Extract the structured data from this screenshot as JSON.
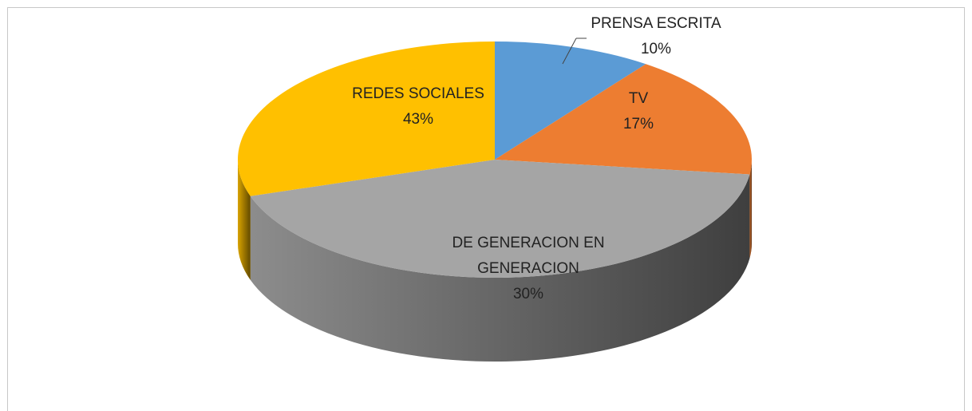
{
  "chart_data": {
    "type": "pie",
    "categories": [
      "PRENSA ESCRITA",
      "TV",
      "REDES SOCIALES",
      "DE GENERACION EN GENERACION"
    ],
    "values": [
      10,
      17,
      43,
      30
    ],
    "value_labels": [
      "10%",
      "17%",
      "43%",
      "30%"
    ],
    "colors": [
      "#5b9bd5",
      "#ed7d31",
      "#a5a5a5",
      "#ffc000"
    ]
  }
}
